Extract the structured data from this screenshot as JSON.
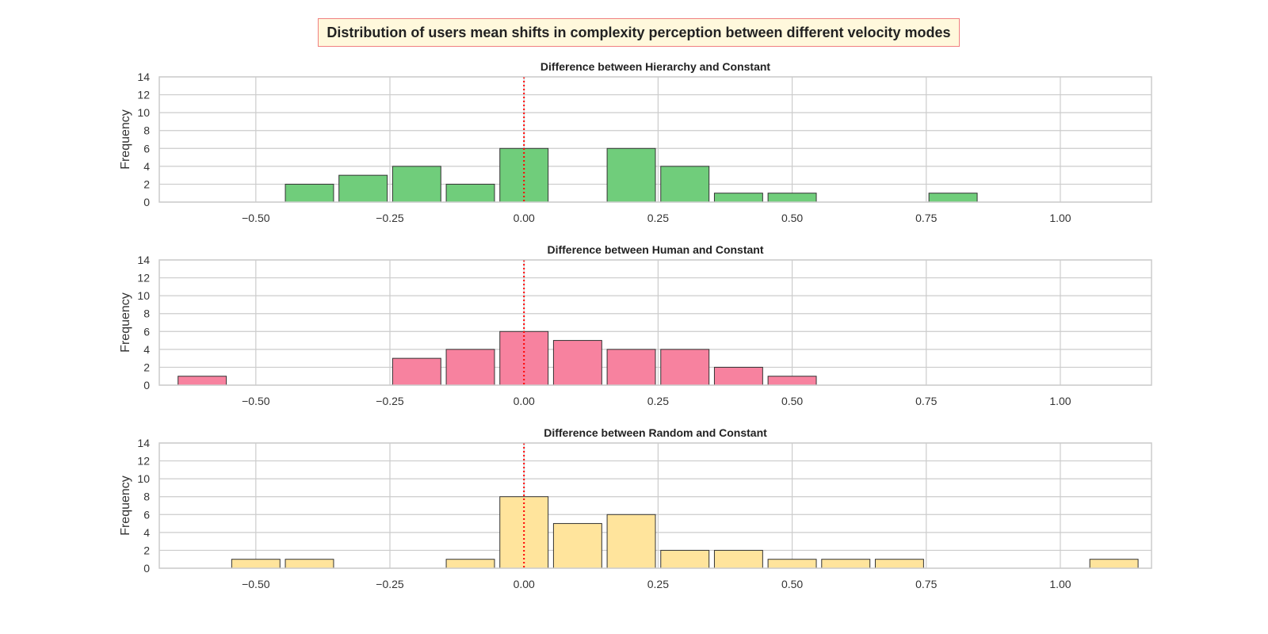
{
  "figure": {
    "title": "Distribution of users mean shifts in complexity perception between different velocity modes"
  },
  "colors": {
    "grid": "#cccccc",
    "bar_edge": "#333333",
    "reference_line": "#ff0000",
    "title_bg": "#fff8dc",
    "title_border": "#f08080"
  },
  "chart_data": [
    {
      "type": "bar",
      "title": "Difference between Hierarchy and Constant",
      "ylabel": "Frequency",
      "xlabel": "",
      "xlim": [
        -0.68,
        1.17
      ],
      "ylim": [
        0,
        14
      ],
      "xticks": [
        -0.5,
        -0.25,
        0.0,
        0.25,
        0.5,
        0.75,
        1.0
      ],
      "xtick_labels": [
        "−0.50",
        "−0.25",
        "0.00",
        "0.25",
        "0.50",
        "0.75",
        "1.00"
      ],
      "yticks": [
        0,
        2,
        4,
        6,
        8,
        10,
        12,
        14
      ],
      "ytick_labels": [
        "0",
        "2",
        "4",
        "6",
        "8",
        "10",
        "12",
        "14"
      ],
      "grid": true,
      "bin_width": 0.1,
      "bar_width": 0.09,
      "reference_line_x": 0.0,
      "color": "#70cd7b",
      "bins": [
        -0.4,
        -0.3,
        -0.2,
        -0.1,
        0.0,
        0.2,
        0.3,
        0.4,
        0.5,
        0.8
      ],
      "values": [
        2,
        3,
        4,
        2,
        6,
        6,
        4,
        1,
        1,
        1
      ]
    },
    {
      "type": "bar",
      "title": "Difference between Human and Constant",
      "ylabel": "Frequency",
      "xlabel": "",
      "xlim": [
        -0.68,
        1.17
      ],
      "ylim": [
        0,
        14
      ],
      "xticks": [
        -0.5,
        -0.25,
        0.0,
        0.25,
        0.5,
        0.75,
        1.0
      ],
      "xtick_labels": [
        "−0.50",
        "−0.25",
        "0.00",
        "0.25",
        "0.50",
        "0.75",
        "1.00"
      ],
      "yticks": [
        0,
        2,
        4,
        6,
        8,
        10,
        12,
        14
      ],
      "ytick_labels": [
        "0",
        "2",
        "4",
        "6",
        "8",
        "10",
        "12",
        "14"
      ],
      "grid": true,
      "bin_width": 0.1,
      "bar_width": 0.09,
      "reference_line_x": 0.0,
      "color": "#f7829f",
      "bins": [
        -0.6,
        -0.2,
        -0.1,
        0.0,
        0.1,
        0.2,
        0.3,
        0.4,
        0.5
      ],
      "values": [
        1,
        3,
        4,
        6,
        5,
        4,
        4,
        2,
        1
      ]
    },
    {
      "type": "bar",
      "title": "Difference between Random and Constant",
      "ylabel": "Frequency",
      "xlabel": "",
      "xlim": [
        -0.68,
        1.17
      ],
      "ylim": [
        0,
        14
      ],
      "xticks": [
        -0.5,
        -0.25,
        0.0,
        0.25,
        0.5,
        0.75,
        1.0
      ],
      "xtick_labels": [
        "−0.50",
        "−0.25",
        "0.00",
        "0.25",
        "0.50",
        "0.75",
        "1.00"
      ],
      "yticks": [
        0,
        2,
        4,
        6,
        8,
        10,
        12,
        14
      ],
      "ytick_labels": [
        "0",
        "2",
        "4",
        "6",
        "8",
        "10",
        "12",
        "14"
      ],
      "grid": true,
      "bin_width": 0.1,
      "bar_width": 0.09,
      "reference_line_x": 0.0,
      "color": "#ffe49c",
      "bins": [
        -0.5,
        -0.4,
        -0.1,
        0.0,
        0.1,
        0.2,
        0.3,
        0.4,
        0.5,
        0.6,
        0.7,
        1.1
      ],
      "values": [
        1,
        1,
        1,
        8,
        5,
        6,
        2,
        2,
        1,
        1,
        1,
        1
      ]
    }
  ]
}
